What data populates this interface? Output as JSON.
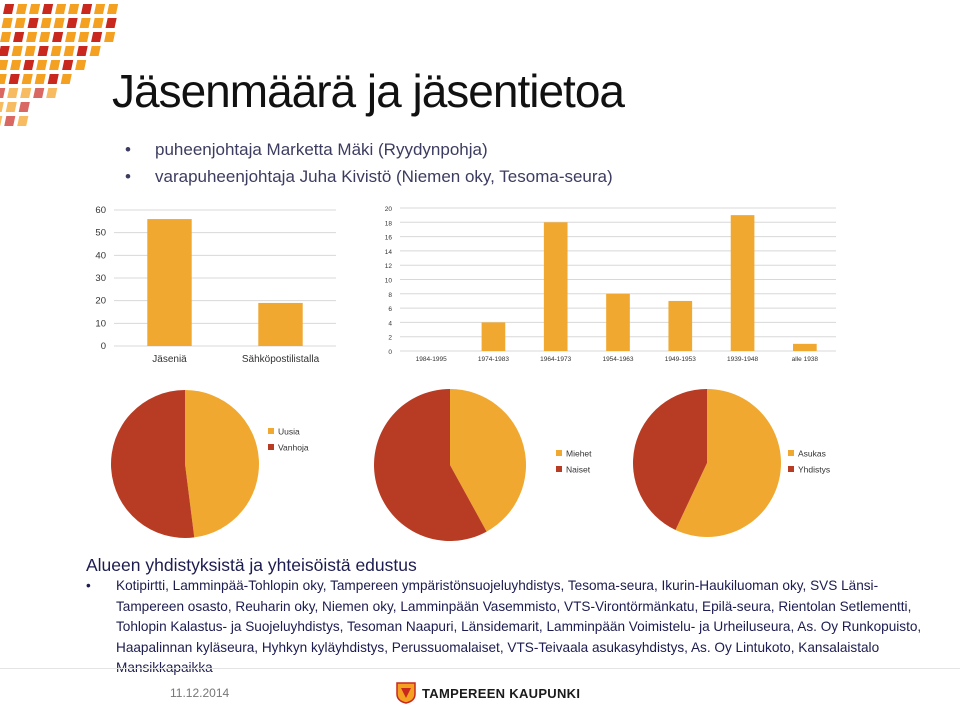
{
  "slide": {
    "title": "Jäsenmäärä ja jäsentietoa",
    "bullets": [
      "puheenjohtaja Marketta Mäki (Ryydynpohja)",
      "varapuheenjohtaja Juha Kivistö (Niemen oky, Tesoma-seura)"
    ],
    "section_title": "Alueen yhdistyksistä ja yhteisöistä edustus",
    "section_bullet": "•",
    "section_text": "Kotipirtti, Lamminpää-Tohlopin oky, Tampereen ympäristönsuojeluyhdistys, Tesoma-seura, Ikurin-Haukiluoman oky, SVS Länsi-Tampereen osasto, Reuharin oky, Niemen oky, Lamminpään Vasemmisto, VTS-Virontörmänkatu, Epilä-seura, Rientolan Setlementti, Tohlopin Kalastus- ja Suojeluyhdistys, Tesoman Naapuri, Länsidemarit, Lamminpään Voimistelu- ja Urheiluseura, As. Oy Runkopuisto, Haapalinnan kyläseura, Hyhkyn kyläyhdistys, Perussuomalaiset, VTS-Teivaala asukasyhdistys, As. Oy Lintukoto, Kansalaistalo Mansikkapaikka"
  },
  "footer": {
    "date": "11.12.2014",
    "brand": "TAMPEREEN KAUPUNKI"
  },
  "colors": {
    "orange": "#F0A830",
    "red": "#B83C24",
    "grid": "#D8D8D8",
    "text_dark": "#111111",
    "bullet_text": "#3C3C60",
    "logo_orange": "#F4A020",
    "logo_red": "#C8281E"
  },
  "icons": {
    "corner_logo": "tampere-brand-pattern-icon",
    "footer_logo": "tampere-crest-icon"
  },
  "chart_data": [
    {
      "type": "bar",
      "categories": [
        "Jäseniä",
        "Sähköpostilistalla"
      ],
      "values": [
        56,
        19
      ],
      "ylim": [
        0,
        60
      ],
      "yticks": [
        0,
        10,
        20,
        30,
        40,
        50,
        60
      ],
      "grid": true
    },
    {
      "type": "bar",
      "categories": [
        "1984-1995",
        "1974-1983",
        "1964-1973",
        "1954-1963",
        "1949-1953",
        "1939-1948",
        "alle 1938"
      ],
      "values": [
        0,
        4,
        18,
        8,
        7,
        19,
        1
      ],
      "ylim": [
        0,
        20
      ],
      "yticks": [
        0,
        2,
        4,
        6,
        8,
        10,
        12,
        14,
        16,
        18,
        20
      ],
      "grid": true
    },
    {
      "type": "pie",
      "labels": [
        "Uusia",
        "Vanhoja"
      ],
      "values": [
        48,
        52
      ],
      "legend": "right"
    },
    {
      "type": "pie",
      "labels": [
        "Miehet",
        "Naiset"
      ],
      "values": [
        42,
        58
      ],
      "legend": "right"
    },
    {
      "type": "pie",
      "labels": [
        "Asukas",
        "Yhdistys"
      ],
      "values": [
        57,
        43
      ],
      "legend": "right"
    }
  ]
}
